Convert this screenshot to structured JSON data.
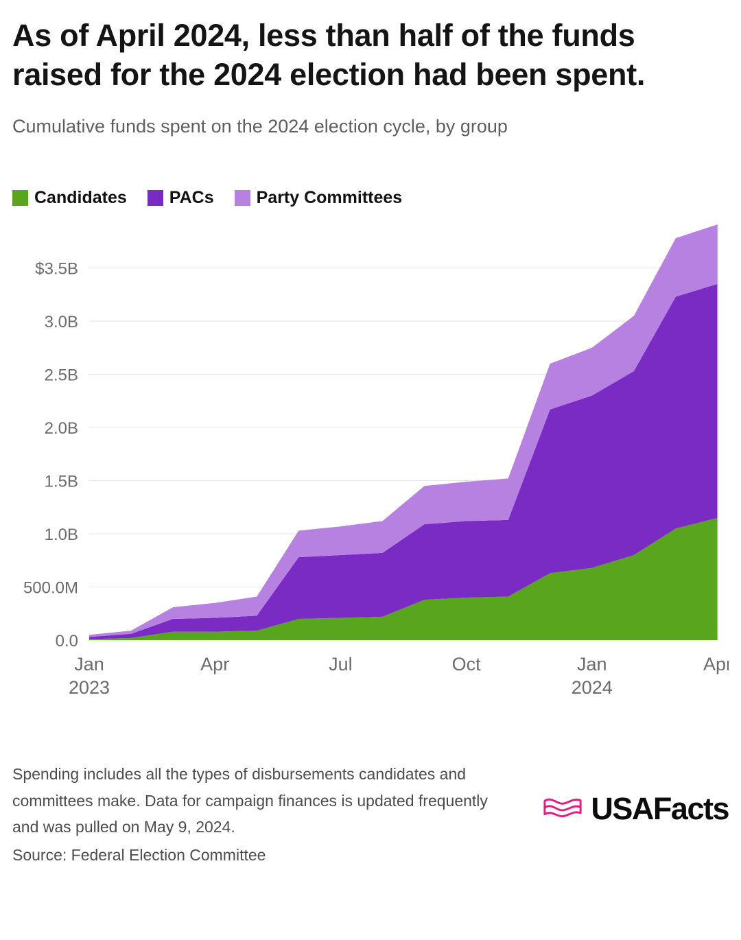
{
  "header": {
    "title": "As of April 2024, less than half of the funds raised for the 2024 election had been spent.",
    "subtitle": "Cumulative funds spent on the 2024 election cycle, by group"
  },
  "chart_data": {
    "type": "area",
    "stacked": true,
    "title": "Cumulative funds spent on the 2024 election cycle, by group",
    "unit": "USD (billions)",
    "legend_position": "top",
    "grid": "horizontal",
    "ylim": [
      0,
      3.91
    ],
    "x": [
      "Jan 2023",
      "Feb 2023",
      "Mar 2023",
      "Apr 2023",
      "May 2023",
      "Jun 2023",
      "Jul 2023",
      "Aug 2023",
      "Sep 2023",
      "Oct 2023",
      "Nov 2023",
      "Dec 2023",
      "Jan 2024",
      "Feb 2024",
      "Mar 2024",
      "Apr 2024"
    ],
    "series": [
      {
        "name": "Candidates",
        "color": "#59a51d",
        "values": [
          0.01,
          0.02,
          0.08,
          0.08,
          0.09,
          0.2,
          0.21,
          0.22,
          0.38,
          0.4,
          0.41,
          0.63,
          0.68,
          0.8,
          1.05,
          1.15
        ]
      },
      {
        "name": "PACs",
        "color": "#7a2bc4",
        "values": [
          0.02,
          0.04,
          0.12,
          0.13,
          0.14,
          0.58,
          0.59,
          0.6,
          0.71,
          0.72,
          0.72,
          1.54,
          1.62,
          1.73,
          2.18,
          2.2
        ]
      },
      {
        "name": "Party Committees",
        "color": "#b781e2",
        "values": [
          0.02,
          0.03,
          0.11,
          0.14,
          0.18,
          0.25,
          0.27,
          0.3,
          0.36,
          0.37,
          0.39,
          0.43,
          0.45,
          0.52,
          0.55,
          0.56
        ]
      }
    ],
    "stacked_totals": [
      0.05,
      0.09,
      0.31,
      0.35,
      0.41,
      1.03,
      1.07,
      1.12,
      1.45,
      1.49,
      1.52,
      2.6,
      2.75,
      3.05,
      3.78,
      3.91
    ],
    "y_ticks": [
      {
        "value": 0,
        "label": "0.0"
      },
      {
        "value": 0.5,
        "label": "500.0M"
      },
      {
        "value": 1.0,
        "label": "1.0B"
      },
      {
        "value": 1.5,
        "label": "1.5B"
      },
      {
        "value": 2.0,
        "label": "2.0B"
      },
      {
        "value": 2.5,
        "label": "2.5B"
      },
      {
        "value": 3.0,
        "label": "3.0B"
      },
      {
        "value": 3.5,
        "label": "$3.5B"
      }
    ],
    "x_ticks": [
      {
        "index": 0,
        "label": "Jan",
        "sublabel": "2023"
      },
      {
        "index": 3,
        "label": "Apr"
      },
      {
        "index": 6,
        "label": "Jul"
      },
      {
        "index": 9,
        "label": "Oct"
      },
      {
        "index": 12,
        "label": "Jan",
        "sublabel": "2024"
      },
      {
        "index": 15,
        "label": "Apr"
      }
    ]
  },
  "footer": {
    "note": "Spending includes all the types of disbursements candidates and committees make. Data for campaign finances is updated frequently and was pulled on May 9, 2024.",
    "source": "Source: Federal Election Committee",
    "brand": "USAFacts",
    "brand_color": "#e9197f"
  }
}
